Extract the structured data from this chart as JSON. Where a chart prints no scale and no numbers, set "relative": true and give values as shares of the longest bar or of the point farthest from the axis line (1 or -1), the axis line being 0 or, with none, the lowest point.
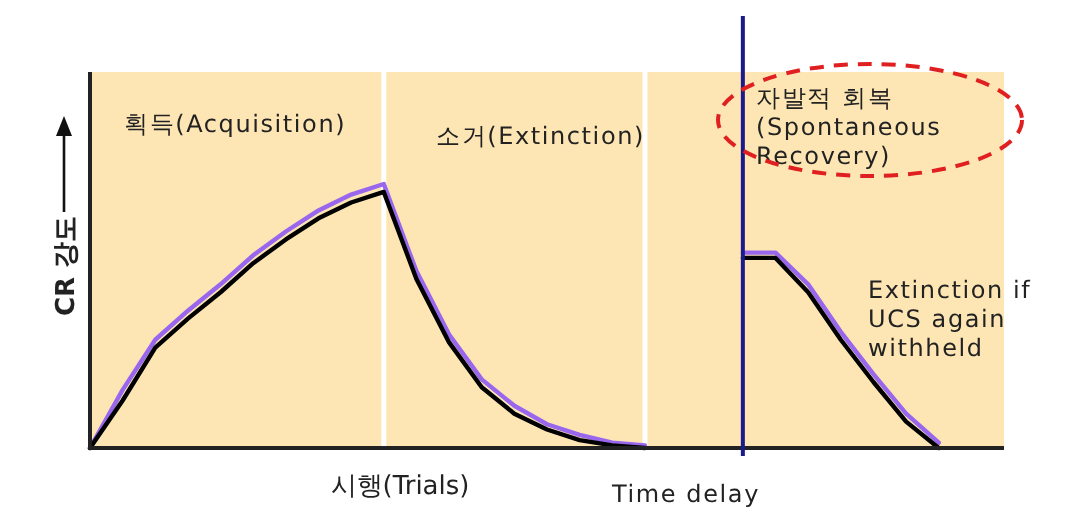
{
  "chart_data": {
    "type": "line",
    "relative": true,
    "xlabel": "시행(Trials)",
    "ylabel": "CR 강도",
    "categories": [
      null,
      null,
      null,
      null,
      null,
      null,
      null,
      null,
      null,
      null,
      null,
      null,
      null,
      null,
      null,
      null,
      null,
      null,
      null,
      null,
      null,
      null,
      null,
      null,
      null,
      null,
      null
    ],
    "series": [
      {
        "color": "#9966ee",
        "values": [
          0,
          0.22,
          0.41,
          0.52,
          0.62,
          0.73,
          0.82,
          0.9,
          0.96,
          1.0,
          0.67,
          0.43,
          0.26,
          0.16,
          0.09,
          0.05,
          0.02,
          0.01,
          null,
          null,
          null,
          null,
          null,
          null,
          null,
          null,
          null
        ]
      },
      {
        "color": "#000000",
        "values": [
          0,
          0.18,
          0.38,
          0.49,
          0.59,
          0.7,
          0.79,
          0.87,
          0.93,
          0.97,
          0.64,
          0.4,
          0.23,
          0.13,
          0.07,
          0.03,
          0.01,
          0,
          null,
          null,
          null,
          null,
          null,
          null,
          null,
          null,
          null
        ]
      },
      {
        "color": "#9966ee",
        "values": [
          null,
          null,
          null,
          null,
          null,
          null,
          null,
          null,
          null,
          null,
          null,
          null,
          null,
          null,
          null,
          null,
          null,
          null,
          null,
          null,
          0.74,
          0.74,
          0.62,
          0.44,
          0.28,
          0.13,
          0.02
        ]
      },
      {
        "color": "#000000",
        "values": [
          null,
          null,
          null,
          null,
          null,
          null,
          null,
          null,
          null,
          null,
          null,
          null,
          null,
          null,
          null,
          null,
          null,
          null,
          null,
          null,
          0.72,
          0.72,
          0.59,
          0.41,
          0.25,
          0.1,
          0
        ]
      }
    ],
    "annotations": [
      "획득(Acquisition)",
      "소거(Extinction)",
      "자발적 회복\n(Spontaneous\nRecovery)",
      "Extinction if\nUCS again\nwithheld",
      "Time delay"
    ]
  }
}
